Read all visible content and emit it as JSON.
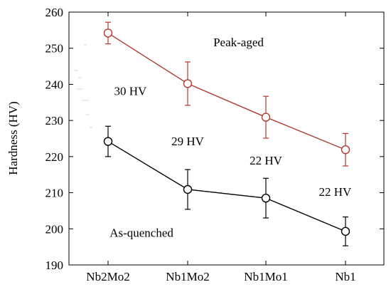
{
  "chart_data": {
    "type": "line",
    "categories": [
      "Nb2Mo2",
      "Nb1Mo2",
      "Nb1Mo1",
      "Nb1"
    ],
    "ylabel": "Hardness (HV)",
    "xlabel": "",
    "ylim": [
      190,
      260
    ],
    "yticks": [
      190,
      200,
      210,
      220,
      230,
      240,
      250,
      260
    ],
    "grid": false,
    "series": [
      {
        "name": "Peak-aged",
        "color": "#b03a2e",
        "marker": "open-circle",
        "values": [
          254.2,
          240.2,
          230.9,
          221.9
        ],
        "errors": [
          3.0,
          6.0,
          5.8,
          4.5
        ]
      },
      {
        "name": "As-quenched",
        "color": "#000000",
        "marker": "open-circle",
        "values": [
          224.2,
          210.9,
          208.5,
          199.3
        ],
        "errors": [
          4.2,
          5.5,
          5.5,
          4.0
        ]
      }
    ],
    "annotations": [
      {
        "text": "Peak-aged",
        "x": 1.65,
        "y": 251.7
      },
      {
        "text": "30 HV",
        "x": 0.28,
        "y": 238.2
      },
      {
        "text": "29 HV",
        "x": 1.0,
        "y": 224.3
      },
      {
        "text": "22 HV",
        "x": 2.0,
        "y": 219.0
      },
      {
        "text": "22 HV",
        "x": 2.87,
        "y": 210.3
      },
      {
        "text": "As-quenched",
        "x": 0.42,
        "y": 199.0
      }
    ]
  }
}
